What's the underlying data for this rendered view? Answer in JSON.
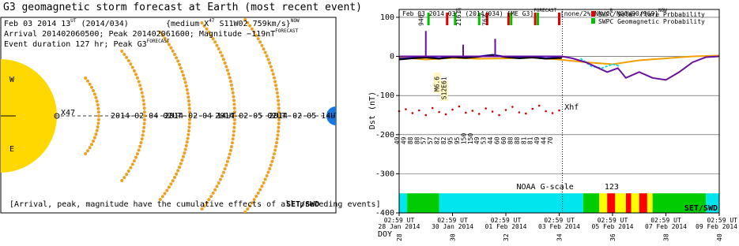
{
  "left_panel": {
    "title": "G3 geomagnetic storm forecast at Earth (most recent event)",
    "lines": [
      [
        "Feb 03 2014 13",
        "UT",
        " (2014/034)"
      ],
      [
        "{medium X",
        "47",
        " S11W02 759km/s}",
        "NOW"
      ],
      [
        "Arrival 201402060500; Peak 201402061600; Magnitude −119nT",
        "FORECAST"
      ],
      [
        "Event duration 127 hr; Peak G3",
        "FORECAST"
      ]
    ],
    "sun_labels": [
      "W",
      "E"
    ],
    "source_label": "X47",
    "date_labels": [
      "2014-02-04 02UT",
      "2014-02-04 14UT",
      "2014-02-05 02UT",
      "2014-02-05 14UT"
    ],
    "footer": "[Arrival, peak, magnitude have the cumulative effects of all preceding events]",
    "credit": "SET/SWD"
  },
  "chart_data": {
    "type": "line",
    "header": [
      "Feb 03 2014 03",
      "UT",
      " (2014/034)  [ME G3]",
      "FORECAST",
      " [none/2%/NN/C",
      "8",
      "/N00W90/969]",
      "NOW"
    ],
    "y_label": "Dst (nT)",
    "x_label": "DOY",
    "xlim": [
      28,
      40
    ],
    "ylim": [
      -400,
      120
    ],
    "yticks": [
      100,
      0,
      -100,
      -200,
      -300,
      -400
    ],
    "xticks": [
      {
        "value": 28,
        "label": "02:59 UT",
        "date": "28 Jan 2014"
      },
      {
        "value": 30,
        "label": "02:59 UT",
        "date": "30 Jan 2014"
      },
      {
        "value": 32,
        "label": "02:59 UT",
        "date": "01 Feb 2014"
      },
      {
        "value": 34,
        "label": "02:59 UT",
        "date": "03 Feb 2014"
      },
      {
        "value": 36,
        "label": "02:59 UT",
        "date": "05 Feb 2014"
      },
      {
        "value": 38,
        "label": "02:59 UT",
        "date": "07 Feb 2014"
      },
      {
        "value": 40,
        "label": "02:59 UT",
        "date": "09 Feb 2014"
      }
    ],
    "grid": true,
    "now_x": 34.12,
    "legend": [
      {
        "name": "SWPC Solar Flare Prbbability",
        "color": "#e00000"
      },
      {
        "name": "SWPC Geomagnetic Probability",
        "color": "#00c000"
      }
    ],
    "flare_probability_x": [
      29.8,
      31.3,
      32.1,
      33.1,
      34.0
    ],
    "geomagnetic_probability_x": [
      29.1,
      30.1,
      31.0,
      32.2,
      33.2
    ],
    "series": [
      {
        "color": "#f0a000",
        "dash": false,
        "x": [
          28,
          29,
          30,
          31,
          32,
          33,
          34,
          35,
          36,
          37,
          38,
          39,
          40
        ],
        "values": [
          -2,
          -8,
          -4,
          -6,
          -5,
          -3,
          -8,
          -15,
          -20,
          -10,
          -5,
          0,
          2
        ]
      },
      {
        "color": "#0000ff",
        "dash": false,
        "x": [
          28,
          28.5,
          29,
          29.5,
          30,
          30.5,
          31,
          31.5,
          32,
          32.5,
          33,
          33.5,
          34
        ],
        "values": [
          -6,
          -4,
          -2,
          -5,
          -1,
          -3,
          0,
          4,
          -1,
          -4,
          -2,
          -5,
          -3
        ]
      },
      {
        "color": "#000000",
        "dash": false,
        "x": [
          28,
          28.5,
          29,
          29.5,
          30,
          30.5,
          31,
          31.5,
          32,
          32.5,
          33,
          33.5,
          34.1
        ],
        "values": [
          -8,
          -5,
          -3,
          -6,
          -2,
          -4,
          -1,
          3,
          -2,
          -5,
          -3,
          -6,
          -4
        ]
      },
      {
        "color": "#00e0ee",
        "dash": true,
        "x": [
          34.8,
          35.2,
          35.6,
          36,
          36.3
        ],
        "values": [
          -5,
          -25,
          -30,
          -20,
          -25
        ]
      },
      {
        "color": "#6a0fa0",
        "dash": false,
        "x": [
          28,
          29,
          29,
          29,
          30.4,
          30.4,
          30.4,
          31.6,
          31.6,
          31.6,
          34.1,
          34.5,
          35,
          35.8,
          36.2,
          36.5,
          37,
          37.5,
          38,
          38.5,
          39,
          39.5,
          40
        ],
        "values": [
          0,
          0,
          65,
          0,
          0,
          30,
          0,
          0,
          45,
          0,
          0,
          -5,
          -15,
          -40,
          -30,
          -55,
          -40,
          -55,
          -60,
          -40,
          -15,
          -2,
          0
        ]
      }
    ],
    "cme_labels": [
      {
        "x": 29.0,
        "text": "946"
      },
      {
        "x": 30.4,
        "text": "2161"
      },
      {
        "x": 31.4,
        "text": "762"
      }
    ],
    "flare_labels": {
      "x": 29.5,
      "texts": [
        "M6.6",
        "S12E61"
      ]
    },
    "xhf": {
      "label": "Xhf",
      "color": "#cc0000",
      "x": [
        28,
        28.25,
        28.5,
        28.75,
        29,
        29.25,
        29.5,
        29.75,
        30,
        30.25,
        30.5,
        30.75,
        31,
        31.25,
        31.5,
        31.75,
        32,
        32.25,
        32.5,
        32.75,
        33,
        33.25,
        33.5,
        33.75,
        34
      ],
      "values": [
        -140,
        -135,
        -145,
        -138,
        -150,
        -132,
        -142,
        -148,
        -136,
        -128,
        -144,
        -139,
        -147,
        -133,
        -141,
        -150,
        -137,
        -129,
        -143,
        -146,
        -134,
        -126,
        -140,
        -145,
        -138
      ],
      "labels": [
        "49",
        "49",
        "88",
        "88",
        "57",
        "57",
        "82",
        "82",
        "95",
        "95",
        "150",
        "150",
        "49",
        "53",
        "44",
        "60",
        "60",
        "88",
        "88",
        "81",
        "81",
        "49",
        "44",
        "70"
      ]
    },
    "g_scale": {
      "label": "NOAA G-scale",
      "legend_levels": [
        1,
        2,
        3
      ],
      "colors": [
        "#00e5ee",
        "#00cc00",
        "#ffff00",
        "#ff0000"
      ],
      "bins": [
        28,
        28.3,
        29.5,
        34.9,
        35.5,
        35.8,
        36.1,
        36.5,
        36.7,
        37,
        37.3,
        37.5,
        39.5,
        40
      ],
      "levels": [
        0,
        1,
        0,
        1,
        2,
        3,
        2,
        3,
        2,
        3,
        2,
        1,
        0
      ]
    },
    "credit": "SET/SWD"
  }
}
